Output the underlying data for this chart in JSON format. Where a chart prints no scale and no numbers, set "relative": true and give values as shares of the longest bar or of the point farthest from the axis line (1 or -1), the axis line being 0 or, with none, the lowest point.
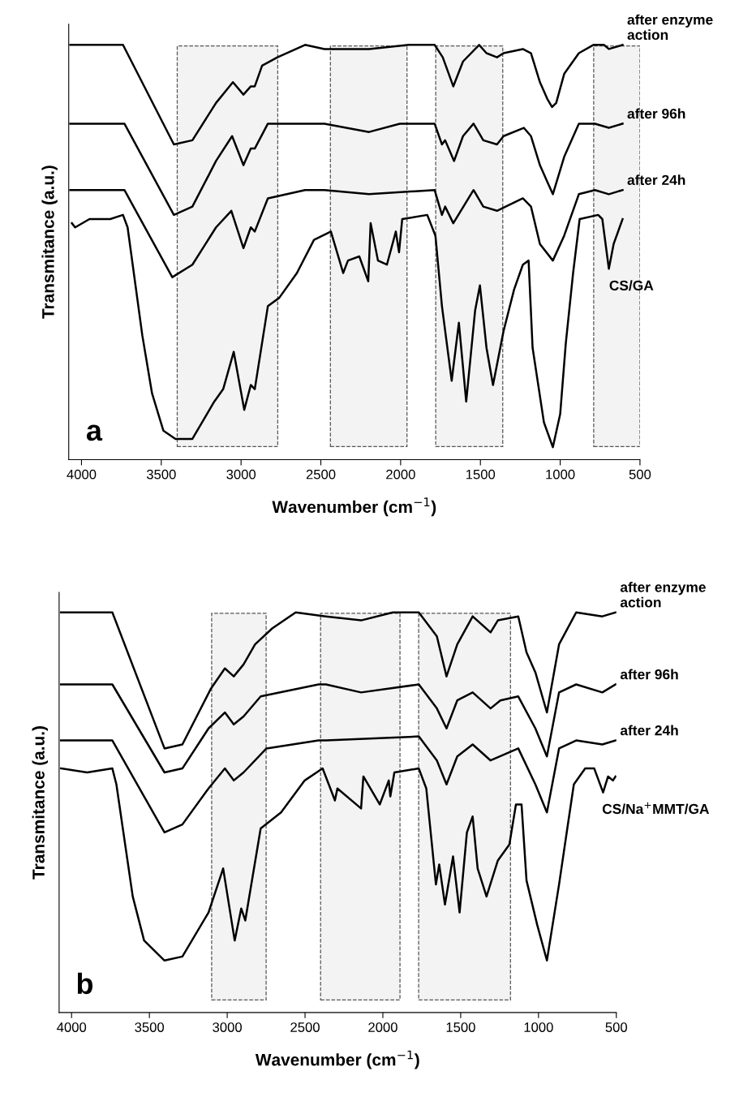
{
  "chart_data": [
    {
      "type": "line",
      "relative": true,
      "xlabel": "Wavenumber (cm$^{−1}$)",
      "ylabel": "Transmitance (a.u.)",
      "xlim": [
        4080,
        500
      ],
      "xticks": [
        4000,
        3500,
        3000,
        2500,
        2000,
        1500,
        1000,
        500
      ],
      "grid": false,
      "legend": false,
      "marker": "none",
      "line_style": "solid",
      "annotations": [
        "a"
      ],
      "bands": [
        {
          "axis": "x",
          "from": 3400,
          "to": 2770,
          "color": "#555555"
        },
        {
          "axis": "x",
          "from": 2440,
          "to": 1960,
          "color": "#555555"
        },
        {
          "axis": "x",
          "from": 1780,
          "to": 1360,
          "color": "#555555"
        },
        {
          "axis": "x",
          "from": 790,
          "to": 500,
          "color": "#555555"
        }
      ],
      "series": [
        {
          "name": "after enzyme action",
          "color": "#000000",
          "x": [
            4070,
            3740,
            3421,
            3305,
            3157,
            3051,
            2985,
            2939,
            2914,
            2868,
            2772,
            2599,
            2477,
            2198,
            1949,
            1787,
            1736,
            1670,
            1609,
            1508,
            1462,
            1396,
            1355,
            1234,
            1183,
            1127,
            1081,
            1051,
            1025,
            975,
            883,
            792,
            726,
            695,
            609
          ],
          "values": [
            1.0,
            1.0,
            0.76,
            0.77,
            0.86,
            0.91,
            0.88,
            0.9,
            0.9,
            0.95,
            0.97,
            1.0,
            0.99,
            0.99,
            1.0,
            1.0,
            0.97,
            0.9,
            0.96,
            1.0,
            0.98,
            0.97,
            0.98,
            0.99,
            0.98,
            0.91,
            0.87,
            0.85,
            0.86,
            0.93,
            0.98,
            1.0,
            1.0,
            0.99,
            1.0
          ]
        },
        {
          "name": "after 96h",
          "color": "#000000",
          "x": [
            4070,
            3731,
            3421,
            3305,
            3157,
            3056,
            2985,
            2939,
            2914,
            2832,
            2477,
            2198,
            2005,
            1787,
            1741,
            1721,
            1665,
            1609,
            1543,
            1482,
            1396,
            1355,
            1228,
            1183,
            1127,
            1081,
            1046,
            975,
            883,
            782,
            695,
            609
          ],
          "values": [
            0.81,
            0.81,
            0.59,
            0.61,
            0.72,
            0.78,
            0.71,
            0.75,
            0.75,
            0.81,
            0.81,
            0.79,
            0.81,
            0.81,
            0.76,
            0.77,
            0.72,
            0.78,
            0.81,
            0.77,
            0.76,
            0.78,
            0.8,
            0.78,
            0.71,
            0.67,
            0.64,
            0.73,
            0.81,
            0.81,
            0.8,
            0.81
          ]
        },
        {
          "name": "after 24h",
          "color": "#000000",
          "x": [
            4070,
            3731,
            3431,
            3305,
            3157,
            3061,
            2985,
            2939,
            2914,
            2832,
            2599,
            2477,
            2198,
            1787,
            1741,
            1721,
            1670,
            1543,
            1482,
            1396,
            1234,
            1183,
            1127,
            1046,
            975,
            883,
            782,
            695,
            609
          ],
          "values": [
            0.65,
            0.65,
            0.44,
            0.47,
            0.56,
            0.6,
            0.51,
            0.56,
            0.55,
            0.63,
            0.65,
            0.65,
            0.64,
            0.65,
            0.59,
            0.61,
            0.57,
            0.65,
            0.61,
            0.6,
            0.63,
            0.61,
            0.52,
            0.48,
            0.54,
            0.64,
            0.65,
            0.64,
            0.65
          ]
        },
        {
          "name": "CS/GA",
          "color": "#000000",
          "x": [
            4060,
            4040,
            3950,
            3820,
            3740,
            3711,
            3619,
            3558,
            3487,
            3411,
            3305,
            3168,
            3112,
            3046,
            2980,
            2939,
            2914,
            2832,
            2761,
            2650,
            2543,
            2437,
            2360,
            2330,
            2259,
            2203,
            2188,
            2142,
            2086,
            2030,
            2010,
            1990,
            1833,
            1782,
            1741,
            1680,
            1635,
            1589,
            1533,
            1503,
            1462,
            1421,
            1355,
            1289,
            1234,
            1198,
            1173,
            1102,
            1046,
            1000,
            965,
            919,
            878,
            762,
            736,
            695,
            665,
            609
          ],
          "values": [
            0.57,
            0.56,
            0.58,
            0.58,
            0.59,
            0.56,
            0.3,
            0.16,
            0.07,
            0.05,
            0.05,
            0.14,
            0.17,
            0.26,
            0.12,
            0.18,
            0.17,
            0.37,
            0.39,
            0.45,
            0.53,
            0.55,
            0.45,
            0.48,
            0.49,
            0.43,
            0.57,
            0.48,
            0.47,
            0.55,
            0.5,
            0.58,
            0.59,
            0.54,
            0.37,
            0.19,
            0.33,
            0.14,
            0.36,
            0.42,
            0.27,
            0.18,
            0.31,
            0.41,
            0.47,
            0.48,
            0.27,
            0.09,
            0.03,
            0.11,
            0.28,
            0.45,
            0.58,
            0.59,
            0.58,
            0.46,
            0.52,
            0.58
          ]
        }
      ]
    },
    {
      "type": "line",
      "relative": true,
      "xlabel": "Wavenumber (cm$^{−1}$)",
      "ylabel": "Transmitance (a.u.)",
      "xlim": [
        4080,
        500
      ],
      "xticks": [
        4000,
        3500,
        3000,
        2500,
        2000,
        1500,
        1000,
        500
      ],
      "grid": false,
      "legend": false,
      "marker": "none",
      "line_style": "solid",
      "annotations": [
        "b"
      ],
      "bands": [
        {
          "axis": "x",
          "from": 3100,
          "to": 2750,
          "color": "#555555"
        },
        {
          "axis": "x",
          "from": 2400,
          "to": 1890,
          "color": "#555555"
        },
        {
          "axis": "x",
          "from": 1770,
          "to": 1180,
          "color": "#555555"
        }
      ],
      "series": [
        {
          "name": "after enzyme action",
          "color": "#000000",
          "x": [
            4068,
            3738,
            3403,
            3288,
            3104,
            3015,
            2958,
            2895,
            2821,
            2711,
            2560,
            2366,
            2140,
            1936,
            1769,
            1653,
            1591,
            1522,
            1423,
            1308,
            1261,
            1130,
            1077,
            1020,
            946,
            868,
            758,
            590,
            505
          ],
          "values": [
            1.0,
            1.0,
            0.66,
            0.67,
            0.81,
            0.86,
            0.84,
            0.87,
            0.92,
            0.96,
            1.0,
            0.99,
            0.98,
            1.0,
            1.0,
            0.94,
            0.84,
            0.92,
            0.99,
            0.95,
            0.98,
            0.99,
            0.9,
            0.85,
            0.75,
            0.92,
            1.0,
            0.99,
            1.0
          ]
        },
        {
          "name": "after 96h",
          "color": "#000000",
          "x": [
            4068,
            3738,
            3403,
            3288,
            3120,
            3015,
            2958,
            2895,
            2785,
            2413,
            2366,
            2140,
            1769,
            1653,
            1591,
            1522,
            1423,
            1308,
            1245,
            1130,
            1020,
            946,
            868,
            758,
            590,
            505
          ],
          "values": [
            0.82,
            0.82,
            0.6,
            0.61,
            0.71,
            0.75,
            0.72,
            0.74,
            0.79,
            0.82,
            0.82,
            0.8,
            0.82,
            0.76,
            0.71,
            0.78,
            0.8,
            0.76,
            0.78,
            0.79,
            0.71,
            0.64,
            0.8,
            0.82,
            0.8,
            0.82
          ]
        },
        {
          "name": "after 24h",
          "color": "#000000",
          "x": [
            4068,
            3738,
            3403,
            3288,
            3120,
            3015,
            2958,
            2895,
            2748,
            2413,
            2366,
            1769,
            1653,
            1591,
            1522,
            1423,
            1308,
            1130,
            1020,
            946,
            868,
            758,
            590,
            505
          ],
          "values": [
            0.68,
            0.68,
            0.45,
            0.47,
            0.56,
            0.61,
            0.58,
            0.6,
            0.66,
            0.68,
            0.68,
            0.69,
            0.63,
            0.57,
            0.64,
            0.67,
            0.63,
            0.66,
            0.57,
            0.5,
            0.66,
            0.68,
            0.67,
            0.68
          ]
        },
        {
          "name": "CS/Na$^{+}$MMT/GA",
          "color": "#000000",
          "x": [
            4068,
            3900,
            3738,
            3712,
            3607,
            3534,
            3403,
            3288,
            3120,
            3026,
            2952,
            2910,
            2884,
            2785,
            2654,
            2502,
            2387,
            2308,
            2292,
            2140,
            2125,
            2020,
            1962,
            1952,
            1926,
            1769,
            1721,
            1659,
            1638,
            1601,
            1549,
            1507,
            1460,
            1423,
            1391,
            1334,
            1261,
            1187,
            1145,
            1109,
            1077,
            1009,
            946,
            868,
            815,
            773,
            700,
            642,
            585,
            553,
            522,
            505
          ],
          "values": [
            0.61,
            0.6,
            0.61,
            0.57,
            0.29,
            0.18,
            0.13,
            0.14,
            0.25,
            0.36,
            0.18,
            0.26,
            0.23,
            0.46,
            0.5,
            0.58,
            0.61,
            0.53,
            0.56,
            0.51,
            0.59,
            0.52,
            0.58,
            0.54,
            0.6,
            0.61,
            0.56,
            0.32,
            0.37,
            0.27,
            0.39,
            0.25,
            0.45,
            0.49,
            0.36,
            0.29,
            0.38,
            0.42,
            0.52,
            0.52,
            0.33,
            0.22,
            0.13,
            0.32,
            0.46,
            0.57,
            0.61,
            0.61,
            0.55,
            0.59,
            0.58,
            0.59
          ]
        }
      ]
    }
  ]
}
